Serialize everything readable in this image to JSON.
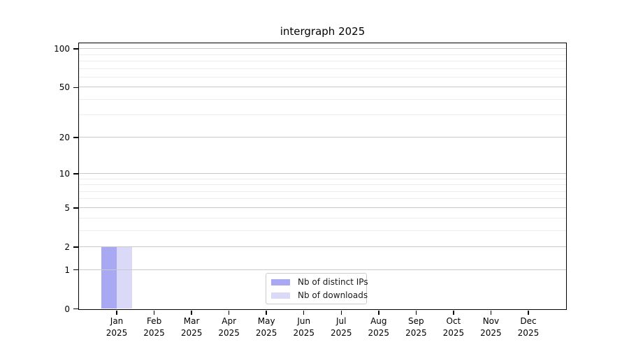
{
  "chart_data": {
    "type": "bar",
    "title": "intergraph 2025",
    "categories": [
      {
        "month": "Jan",
        "year": "2025"
      },
      {
        "month": "Feb",
        "year": "2025"
      },
      {
        "month": "Mar",
        "year": "2025"
      },
      {
        "month": "Apr",
        "year": "2025"
      },
      {
        "month": "May",
        "year": "2025"
      },
      {
        "month": "Jun",
        "year": "2025"
      },
      {
        "month": "Jul",
        "year": "2025"
      },
      {
        "month": "Aug",
        "year": "2025"
      },
      {
        "month": "Sep",
        "year": "2025"
      },
      {
        "month": "Oct",
        "year": "2025"
      },
      {
        "month": "Nov",
        "year": "2025"
      },
      {
        "month": "Dec",
        "year": "2025"
      }
    ],
    "series": [
      {
        "name": "Nb of distinct IPs",
        "color": "#a9a9f3",
        "values": [
          2,
          0,
          0,
          0,
          0,
          0,
          0,
          0,
          0,
          0,
          0,
          0
        ]
      },
      {
        "name": "Nb of downloads",
        "color": "#dadaf8",
        "values": [
          2,
          0,
          0,
          0,
          0,
          0,
          0,
          0,
          0,
          0,
          0,
          0
        ]
      }
    ],
    "xlabel": "",
    "ylabel": "",
    "y_scale": "log10(1+v)",
    "ylim": [
      0,
      110
    ],
    "y_major_ticks": [
      0,
      1,
      2,
      5,
      10,
      20,
      50,
      100
    ],
    "y_minor_gridlines": [
      3,
      4,
      6,
      7,
      8,
      9,
      30,
      40,
      60,
      70,
      80,
      90
    ],
    "grid": "horizontal",
    "legend_position": "lower center",
    "colors": {
      "major_gridline": "#c9c9c9",
      "minor_gridline": "#ededed",
      "spine": "#000000"
    }
  }
}
